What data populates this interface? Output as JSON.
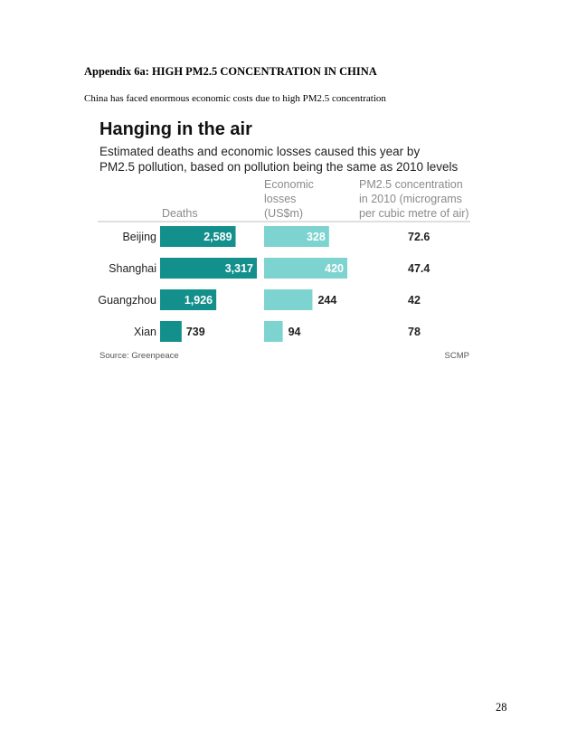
{
  "document": {
    "heading": "Appendix 6a: HIGH PM2.5 CONCENTRATION IN CHINA",
    "intro": "China has faced enormous economic costs due to high PM2.5 concentration",
    "page_number": "28"
  },
  "colors": {
    "deaths_bar": "#138f8c",
    "losses_bar": "#7dd3cf",
    "rule": "#bfbfbf"
  },
  "chart_data": {
    "type": "bar",
    "title": "Hanging in the air",
    "subtitle_lines": [
      "Estimated deaths and economic losses caused this year by",
      "PM2.5 pollution, based on pollution being the same as 2010 levels"
    ],
    "column_headers": {
      "deaths": [
        "Deaths"
      ],
      "losses": [
        "Economic",
        "losses",
        "(US$m)"
      ],
      "pm": [
        "PM2.5 concentration",
        "in 2010 (micrograms",
        "per cubic metre of air)"
      ]
    },
    "categories": [
      "Beijing",
      "Shanghai",
      "Guangzhou",
      "Xian"
    ],
    "series": [
      {
        "name": "Deaths",
        "values": [
          2589,
          3317,
          1926,
          739
        ],
        "labels": [
          "2,589",
          "3,317",
          "1,926",
          "739"
        ],
        "max": 3317
      },
      {
        "name": "Economic losses (US$m)",
        "values": [
          328,
          420,
          244,
          94
        ],
        "labels": [
          "328",
          "420",
          "244",
          "94"
        ],
        "max": 420
      },
      {
        "name": "PM2.5 concentration in 2010",
        "values": [
          72.6,
          47.4,
          42,
          78
        ],
        "labels": [
          "72.6",
          "47.4",
          "42",
          "78"
        ]
      }
    ],
    "source": "Source: Greenpeace",
    "credit": "SCMP"
  }
}
